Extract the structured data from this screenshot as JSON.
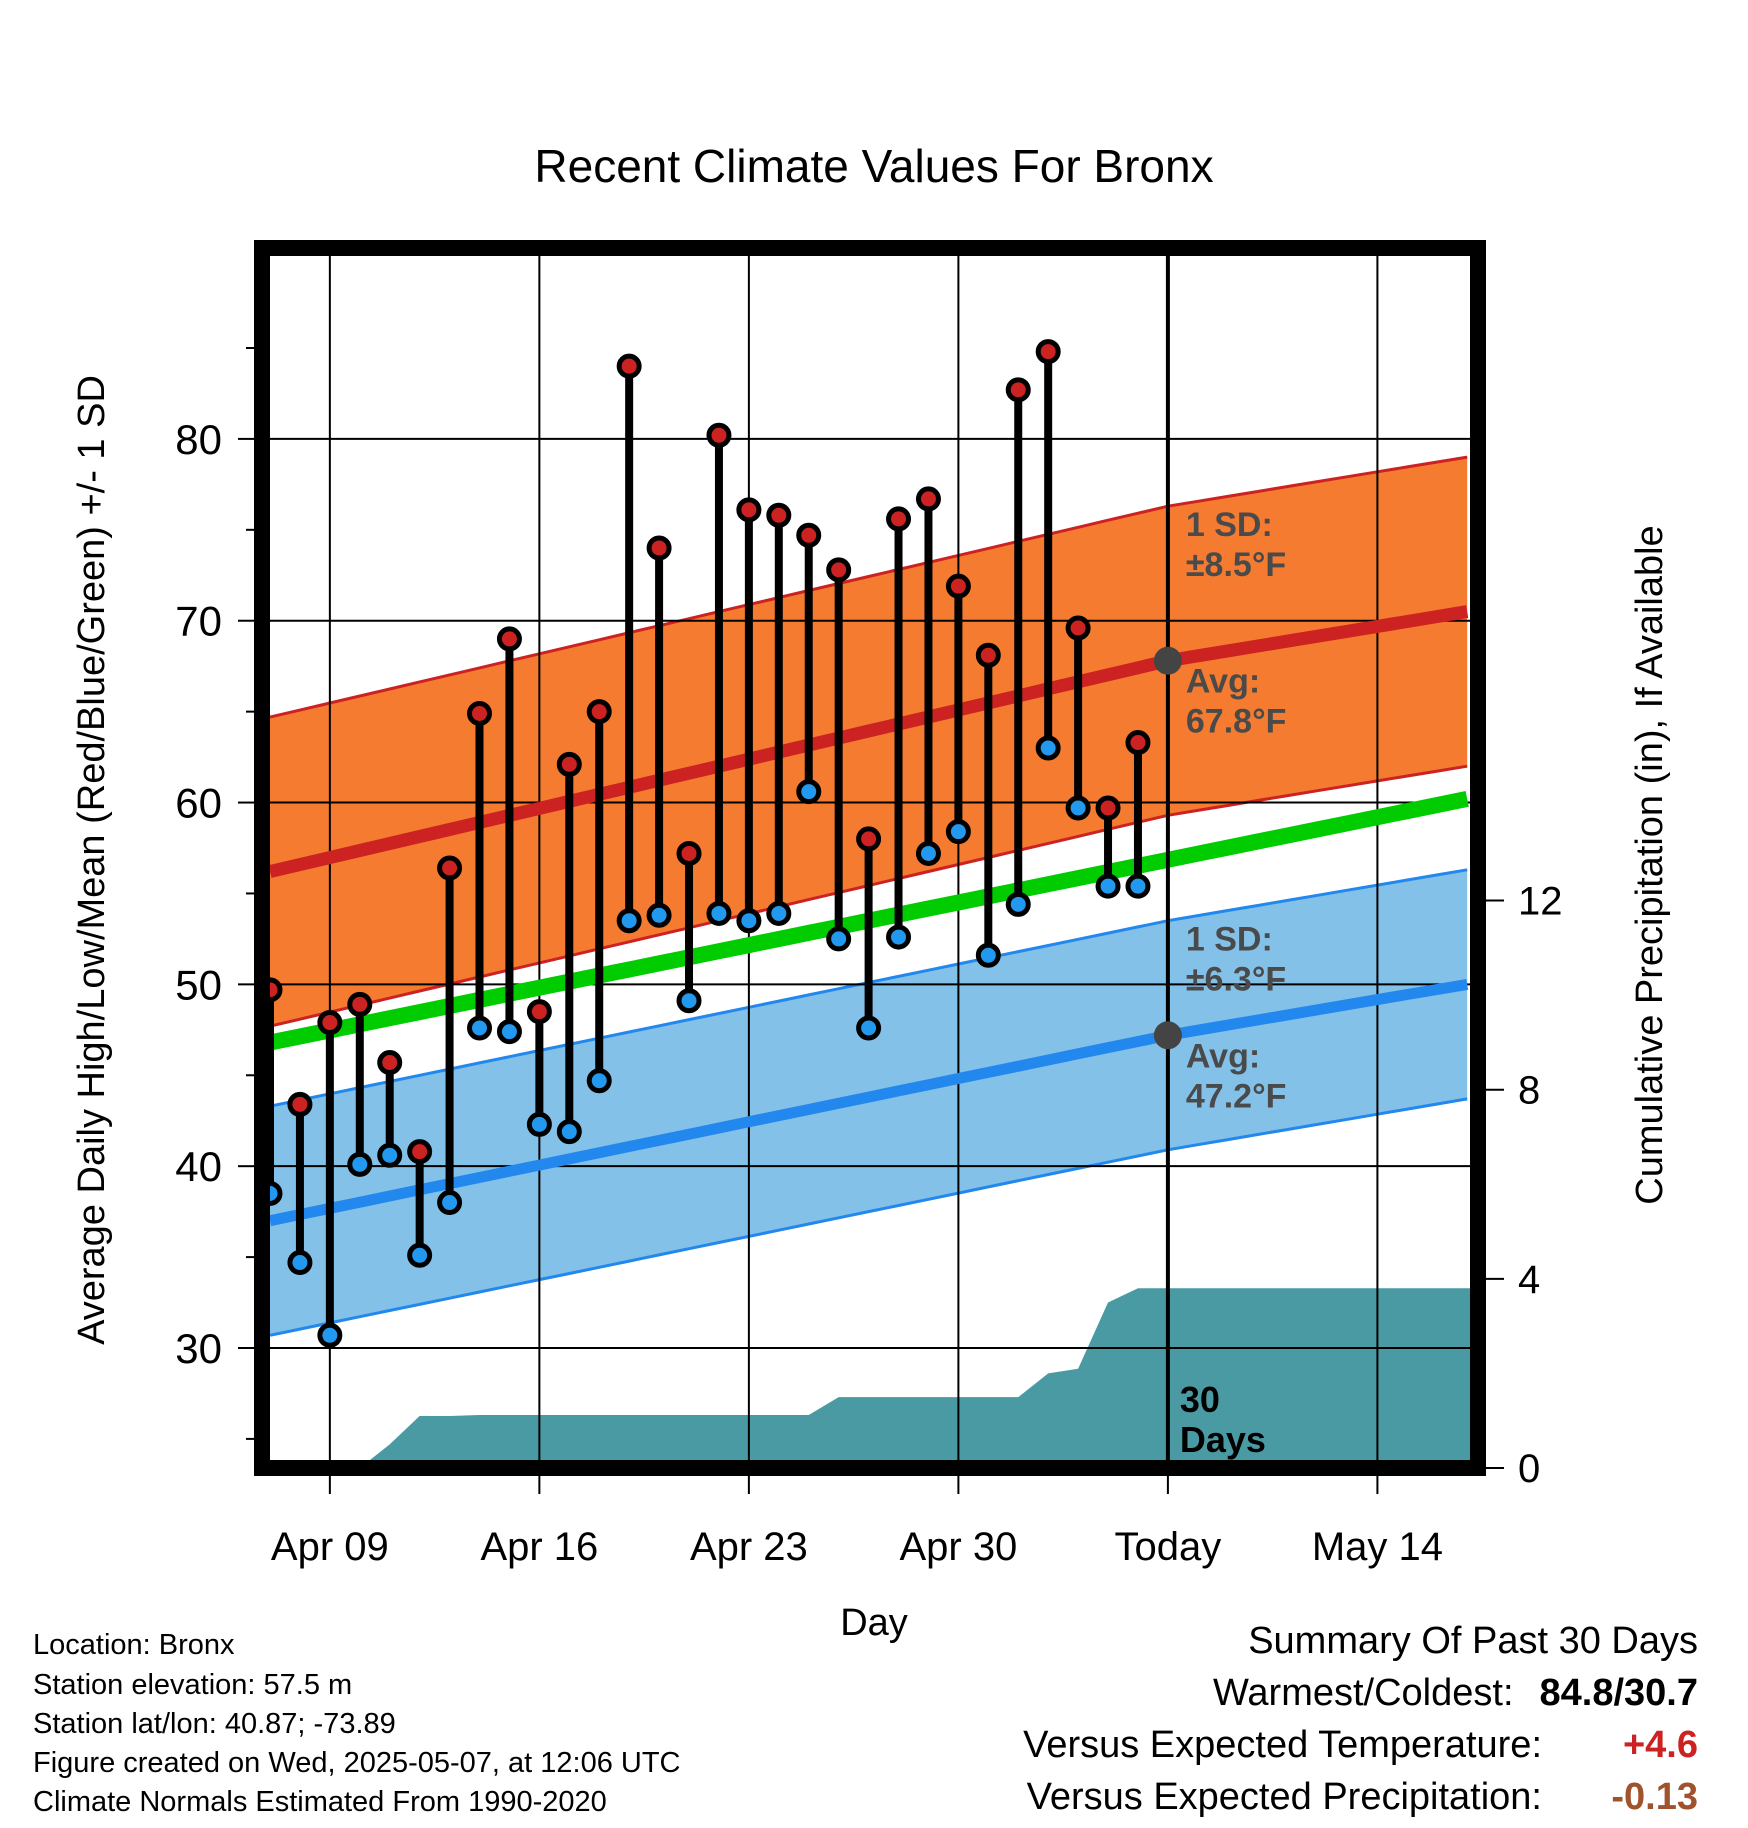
{
  "chart_data": {
    "type": "line",
    "title": "Recent Climate Values For Bronx",
    "xlabel": "Day",
    "ylabel": "Average Daily High/Low/Mean (Red/Blue/Green) +/- 1 SD",
    "y2label": "Cumulative Precipitation (in), If Available",
    "xticks": [
      "Apr 09",
      "Apr 16",
      "Apr 23",
      "Apr 30",
      "Today",
      "May 14"
    ],
    "yticks": [
      30,
      40,
      50,
      60,
      70,
      80
    ],
    "y2ticks": [
      0,
      4,
      8,
      12
    ],
    "ylim": [
      23.4,
      90.5
    ],
    "y2lim": [
      0,
      25.8
    ],
    "grid": true,
    "days": [
      "Apr 07",
      "Apr 08",
      "Apr 09",
      "Apr 10",
      "Apr 11",
      "Apr 12",
      "Apr 13",
      "Apr 14",
      "Apr 15",
      "Apr 16",
      "Apr 17",
      "Apr 18",
      "Apr 19",
      "Apr 20",
      "Apr 21",
      "Apr 22",
      "Apr 23",
      "Apr 24",
      "Apr 25",
      "Apr 26",
      "Apr 27",
      "Apr 28",
      "Apr 29",
      "Apr 30",
      "May 01",
      "May 02",
      "May 03",
      "May 04",
      "May 05",
      "May 06"
    ],
    "series": [
      {
        "name": "High",
        "color": "#cc2222",
        "values": [
          49.7,
          43.4,
          47.9,
          48.9,
          45.7,
          40.8,
          56.4,
          64.9,
          69.0,
          48.5,
          62.1,
          65.0,
          84.0,
          74.0,
          57.2,
          80.2,
          76.1,
          75.8,
          74.7,
          72.8,
          58.0,
          75.6,
          76.7,
          71.9,
          68.1,
          82.7,
          84.8,
          69.6,
          59.7,
          63.3
        ]
      },
      {
        "name": "Low",
        "color": "#2299ee",
        "values": [
          38.5,
          34.7,
          30.7,
          40.1,
          40.6,
          35.1,
          38.0,
          47.6,
          47.4,
          42.3,
          41.9,
          44.7,
          53.5,
          53.8,
          49.1,
          53.9,
          53.5,
          53.9,
          60.6,
          52.5,
          47.6,
          52.6,
          57.2,
          58.4,
          51.6,
          54.4,
          63.0,
          59.7,
          55.4,
          55.4
        ]
      }
    ],
    "normals": {
      "high_avg": {
        "start": 56.2,
        "today": 67.8,
        "end": 70.5
      },
      "high_sd": 8.5,
      "mean_avg": {
        "start": 46.8,
        "end": 60.2
      },
      "low_avg": {
        "start": 37.0,
        "today": 47.2,
        "end": 50.0
      },
      "low_sd": 6.3
    },
    "precip_cumulative": [
      0,
      0,
      0,
      0,
      0.5,
      1.1,
      1.1,
      1.12,
      1.12,
      1.12,
      1.12,
      1.12,
      1.12,
      1.12,
      1.12,
      1.12,
      1.12,
      1.12,
      1.12,
      1.5,
      1.5,
      1.5,
      1.5,
      1.5,
      1.5,
      1.5,
      2.0,
      2.1,
      3.5,
      3.8,
      3.8
    ],
    "annotations": {
      "high_sd_label": [
        "1 SD:",
        "±8.5°F"
      ],
      "high_avg_label": [
        "Avg:",
        "67.8°F"
      ],
      "low_sd_label": [
        "1 SD:",
        "±6.3°F"
      ],
      "low_avg_label": [
        "Avg:",
        "47.2°F"
      ],
      "window_label": [
        "30",
        "Days"
      ]
    },
    "colors": {
      "high_band": "#f47b2f",
      "high_line": "#cc2222",
      "low_band": "#84c1e8",
      "low_line": "#2288ee",
      "mean_line": "#00cc00",
      "precip": "#4a9aa3",
      "annotation_text": "#4a4a4a"
    }
  },
  "meta": {
    "location": "Location: Bronx",
    "elevation": "Station elevation: 57.5 m",
    "latlon": "Station lat/lon: 40.87; -73.89",
    "created": "Figure created on Wed, 2025-05-07, at 12:06 UTC",
    "normals": "Climate Normals Estimated From 1990-2020"
  },
  "summary": {
    "title": "Summary Of Past 30 Days",
    "warmest_label": "Warmest/Coldest:",
    "warmest_value": "84.8/30.7",
    "temp_label": "Versus Expected Temperature:",
    "temp_value": "+4.6",
    "temp_color": "#cc2222",
    "precip_label": "Versus Expected Precipitation:",
    "precip_value": "-0.13",
    "precip_color": "#a0522d"
  }
}
